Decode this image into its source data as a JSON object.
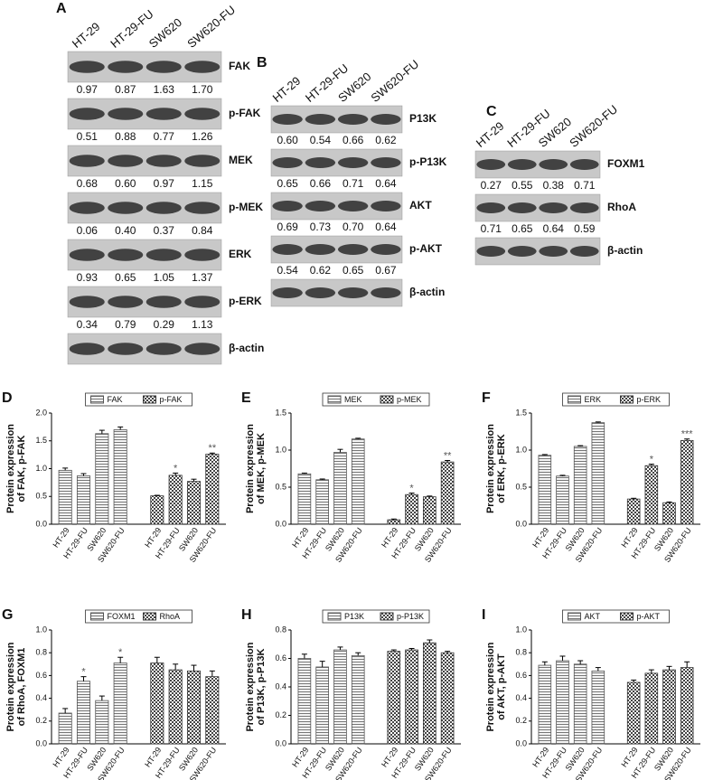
{
  "blots": [
    {
      "panel": "A",
      "lanes": [
        "HT-29",
        "HT-29-FU",
        "SW620",
        "SW620-FU"
      ],
      "rows": [
        {
          "label": "FAK",
          "values": [
            "0.97",
            "0.87",
            "1.63",
            "1.70"
          ]
        },
        {
          "label": "p-FAK",
          "values": [
            "0.51",
            "0.88",
            "0.77",
            "1.26"
          ]
        },
        {
          "label": "MEK",
          "values": [
            "0.68",
            "0.60",
            "0.97",
            "1.15"
          ]
        },
        {
          "label": "p-MEK",
          "values": [
            "0.06",
            "0.40",
            "0.37",
            "0.84"
          ]
        },
        {
          "label": "ERK",
          "values": [
            "0.93",
            "0.65",
            "1.05",
            "1.37"
          ]
        },
        {
          "label": "p-ERK",
          "values": [
            "0.34",
            "0.79",
            "0.29",
            "1.13"
          ]
        },
        {
          "label": "β-actin"
        }
      ]
    },
    {
      "panel": "B",
      "lanes": [
        "HT-29",
        "HT-29-FU",
        "SW620",
        "SW620-FU"
      ],
      "rows": [
        {
          "label": "P13K",
          "values": [
            "0.60",
            "0.54",
            "0.66",
            "0.62"
          ]
        },
        {
          "label": "p-P13K",
          "values": [
            "0.65",
            "0.66",
            "0.71",
            "0.64"
          ]
        },
        {
          "label": "AKT",
          "values": [
            "0.69",
            "0.73",
            "0.70",
            "0.64"
          ]
        },
        {
          "label": "p-AKT",
          "values": [
            "0.54",
            "0.62",
            "0.65",
            "0.67"
          ]
        },
        {
          "label": "β-actin"
        }
      ]
    },
    {
      "panel": "C",
      "lanes": [
        "HT-29",
        "HT-29-FU",
        "SW620",
        "SW620-FU"
      ],
      "rows": [
        {
          "label": "FOXM1",
          "values": [
            "0.27",
            "0.55",
            "0.38",
            "0.71"
          ]
        },
        {
          "label": "RhoA",
          "values": [
            "0.71",
            "0.65",
            "0.64",
            "0.59"
          ]
        },
        {
          "label": "β-actin"
        }
      ]
    }
  ],
  "chart_data": [
    {
      "type": "bar",
      "panel": "D",
      "ylabel": [
        "Protein expression",
        "of FAK, p-FAK"
      ],
      "categories": [
        "HT-29",
        "HT-29-FU",
        "SW620",
        "SW620-FU",
        "HT-29",
        "HT-29-FU",
        "SW620",
        "SW620-FU"
      ],
      "ylim": [
        0,
        2
      ],
      "yticks": [
        {
          "value": 0,
          "label": "0.0"
        },
        0.5,
        {
          "value": 1,
          "label": "1.0"
        },
        1.5,
        {
          "value": 2,
          "label": "2.0"
        }
      ],
      "series": [
        {
          "name": "FAK",
          "color": "#555555",
          "pattern": "stripes",
          "values": [
            0.97,
            0.87,
            1.63,
            1.7,
            null,
            null,
            null,
            null
          ],
          "errors": [
            0.04,
            0.04,
            0.06,
            0.05,
            null,
            null,
            null,
            null
          ],
          "significance": [
            null,
            null,
            null,
            null,
            null,
            null,
            null,
            null
          ]
        },
        {
          "name": "p-FAK",
          "color": "#333333",
          "pattern": "checks",
          "values": [
            null,
            null,
            null,
            null,
            0.51,
            0.88,
            0.77,
            1.26
          ],
          "errors": [
            null,
            null,
            null,
            null,
            0.01,
            0.04,
            0.04,
            0.02
          ],
          "significance": [
            null,
            null,
            null,
            null,
            null,
            "*",
            null,
            "**"
          ]
        }
      ]
    },
    {
      "type": "bar",
      "panel": "E",
      "ylabel": [
        "Protein expression",
        "of MEK, p-MEK"
      ],
      "categories": [
        "HT-29",
        "HT-29-FU",
        "SW620",
        "SW620-FU",
        "HT-29",
        "HT-29-FU",
        "SW620",
        "SW620-FU"
      ],
      "ylim": [
        0,
        1.5
      ],
      "yticks": [
        {
          "value": 0,
          "label": "0.0"
        },
        0.5,
        {
          "value": 1,
          "label": "1.0"
        },
        1.5
      ],
      "series": [
        {
          "name": "MEK",
          "color": "#555555",
          "pattern": "stripes",
          "values": [
            0.68,
            0.6,
            0.97,
            1.15,
            null,
            null,
            null,
            null
          ],
          "errors": [
            0.01,
            0.01,
            0.04,
            0.01,
            null,
            null,
            null,
            null
          ],
          "significance": [
            null,
            null,
            null,
            null,
            null,
            null,
            null,
            null
          ]
        },
        {
          "name": "p-MEK",
          "color": "#333333",
          "pattern": "checks",
          "values": [
            null,
            null,
            null,
            null,
            0.06,
            0.4,
            0.37,
            0.84
          ],
          "errors": [
            null,
            null,
            null,
            null,
            0.01,
            0.02,
            0.01,
            0.02
          ],
          "significance": [
            null,
            null,
            null,
            null,
            null,
            "*",
            null,
            "**"
          ]
        }
      ]
    },
    {
      "type": "bar",
      "panel": "F",
      "ylabel": [
        "Protein expression",
        "of ERK, p-ERK"
      ],
      "categories": [
        "HT-29",
        "HT-29-FU",
        "SW620",
        "SW620-FU",
        "HT-29",
        "HT-29-FU",
        "SW620",
        "SW620-FU"
      ],
      "ylim": [
        0,
        1.5
      ],
      "yticks": [
        {
          "value": 0,
          "label": "0.0"
        },
        0.5,
        {
          "value": 1,
          "label": "1.0"
        },
        1.5
      ],
      "series": [
        {
          "name": "ERK",
          "color": "#555555",
          "pattern": "stripes",
          "values": [
            0.93,
            0.65,
            1.05,
            1.37,
            null,
            null,
            null,
            null
          ],
          "errors": [
            0.01,
            0.01,
            0.01,
            0.01,
            null,
            null,
            null,
            null
          ],
          "significance": [
            null,
            null,
            null,
            null,
            null,
            null,
            null,
            null
          ]
        },
        {
          "name": "p-ERK",
          "color": "#333333",
          "pattern": "checks",
          "values": [
            null,
            null,
            null,
            null,
            0.34,
            0.79,
            0.29,
            1.13
          ],
          "errors": [
            null,
            null,
            null,
            null,
            0.01,
            0.02,
            0.01,
            0.02
          ],
          "significance": [
            null,
            null,
            null,
            null,
            null,
            "*",
            null,
            "***"
          ]
        }
      ]
    },
    {
      "type": "bar",
      "panel": "G",
      "ylabel": [
        "Protein expression",
        "of RhoA, FOXM1"
      ],
      "categories": [
        "HT-29",
        "HT-29-FU",
        "SW620",
        "SW620-FU",
        "HT-29",
        "HT-29-FU",
        "SW620",
        "SW620-FU"
      ],
      "ylim": [
        0,
        1
      ],
      "yticks": [
        {
          "value": 0,
          "label": "0.0"
        },
        0.2,
        0.4,
        0.6,
        0.8,
        {
          "value": 1,
          "label": "1.0"
        }
      ],
      "series": [
        {
          "name": "FOXM1",
          "color": "#555555",
          "pattern": "stripes",
          "values": [
            0.27,
            0.55,
            0.38,
            0.71,
            null,
            null,
            null,
            null
          ],
          "errors": [
            0.04,
            0.04,
            0.04,
            0.05,
            null,
            null,
            null,
            null
          ],
          "significance": [
            null,
            "*",
            null,
            "*",
            null,
            null,
            null,
            null
          ]
        },
        {
          "name": "RhoA",
          "color": "#333333",
          "pattern": "checks",
          "values": [
            null,
            null,
            null,
            null,
            0.71,
            0.65,
            0.64,
            0.59
          ],
          "errors": [
            null,
            null,
            null,
            null,
            0.05,
            0.05,
            0.05,
            0.05
          ],
          "significance": [
            null,
            null,
            null,
            null,
            null,
            null,
            null,
            null
          ]
        }
      ]
    },
    {
      "type": "bar",
      "panel": "H",
      "ylabel": [
        "Protein expression",
        "of P13K, p-P13K"
      ],
      "categories": [
        "HT-29",
        "HT-29-FU",
        "SW620",
        "SW620-FU",
        "HT-29",
        "HT-29-FU",
        "SW620",
        "SW620-FU"
      ],
      "ylim": [
        0,
        0.8
      ],
      "yticks": [
        {
          "value": 0,
          "label": "0.0"
        },
        0.2,
        0.4,
        0.6,
        0.8
      ],
      "series": [
        {
          "name": "P13K",
          "color": "#555555",
          "pattern": "stripes",
          "values": [
            0.6,
            0.54,
            0.66,
            0.62,
            null,
            null,
            null,
            null
          ],
          "errors": [
            0.03,
            0.04,
            0.02,
            0.02,
            null,
            null,
            null,
            null
          ],
          "significance": [
            null,
            null,
            null,
            null,
            null,
            null,
            null,
            null
          ]
        },
        {
          "name": "p-P13K",
          "color": "#333333",
          "pattern": "checks",
          "values": [
            null,
            null,
            null,
            null,
            0.65,
            0.66,
            0.71,
            0.64
          ],
          "errors": [
            null,
            null,
            null,
            null,
            0.01,
            0.01,
            0.02,
            0.01
          ],
          "significance": [
            null,
            null,
            null,
            null,
            null,
            null,
            null,
            null
          ]
        }
      ]
    },
    {
      "type": "bar",
      "panel": "I",
      "ylabel": [
        "Protein expression",
        "of AKT, p-AKT"
      ],
      "categories": [
        "HT-29",
        "HT-29-FU",
        "SW620",
        "SW620-FU",
        "HT-29",
        "HT-29-FU",
        "SW620",
        "SW620-FU"
      ],
      "ylim": [
        0,
        1
      ],
      "yticks": [
        {
          "value": 0,
          "label": "0.0"
        },
        0.2,
        0.4,
        0.6,
        0.8,
        {
          "value": 1,
          "label": "1.0"
        }
      ],
      "series": [
        {
          "name": "AKT",
          "color": "#555555",
          "pattern": "stripes",
          "values": [
            0.69,
            0.73,
            0.7,
            0.64,
            null,
            null,
            null,
            null
          ],
          "errors": [
            0.03,
            0.04,
            0.03,
            0.03,
            null,
            null,
            null,
            null
          ],
          "significance": [
            null,
            null,
            null,
            null,
            null,
            null,
            null,
            null
          ]
        },
        {
          "name": "p-AKT",
          "color": "#333333",
          "pattern": "checks",
          "values": [
            null,
            null,
            null,
            null,
            0.54,
            0.62,
            0.65,
            0.67
          ],
          "errors": [
            null,
            null,
            null,
            null,
            0.02,
            0.03,
            0.03,
            0.05
          ],
          "significance": [
            null,
            null,
            null,
            null,
            null,
            null,
            null,
            null
          ]
        }
      ]
    }
  ]
}
